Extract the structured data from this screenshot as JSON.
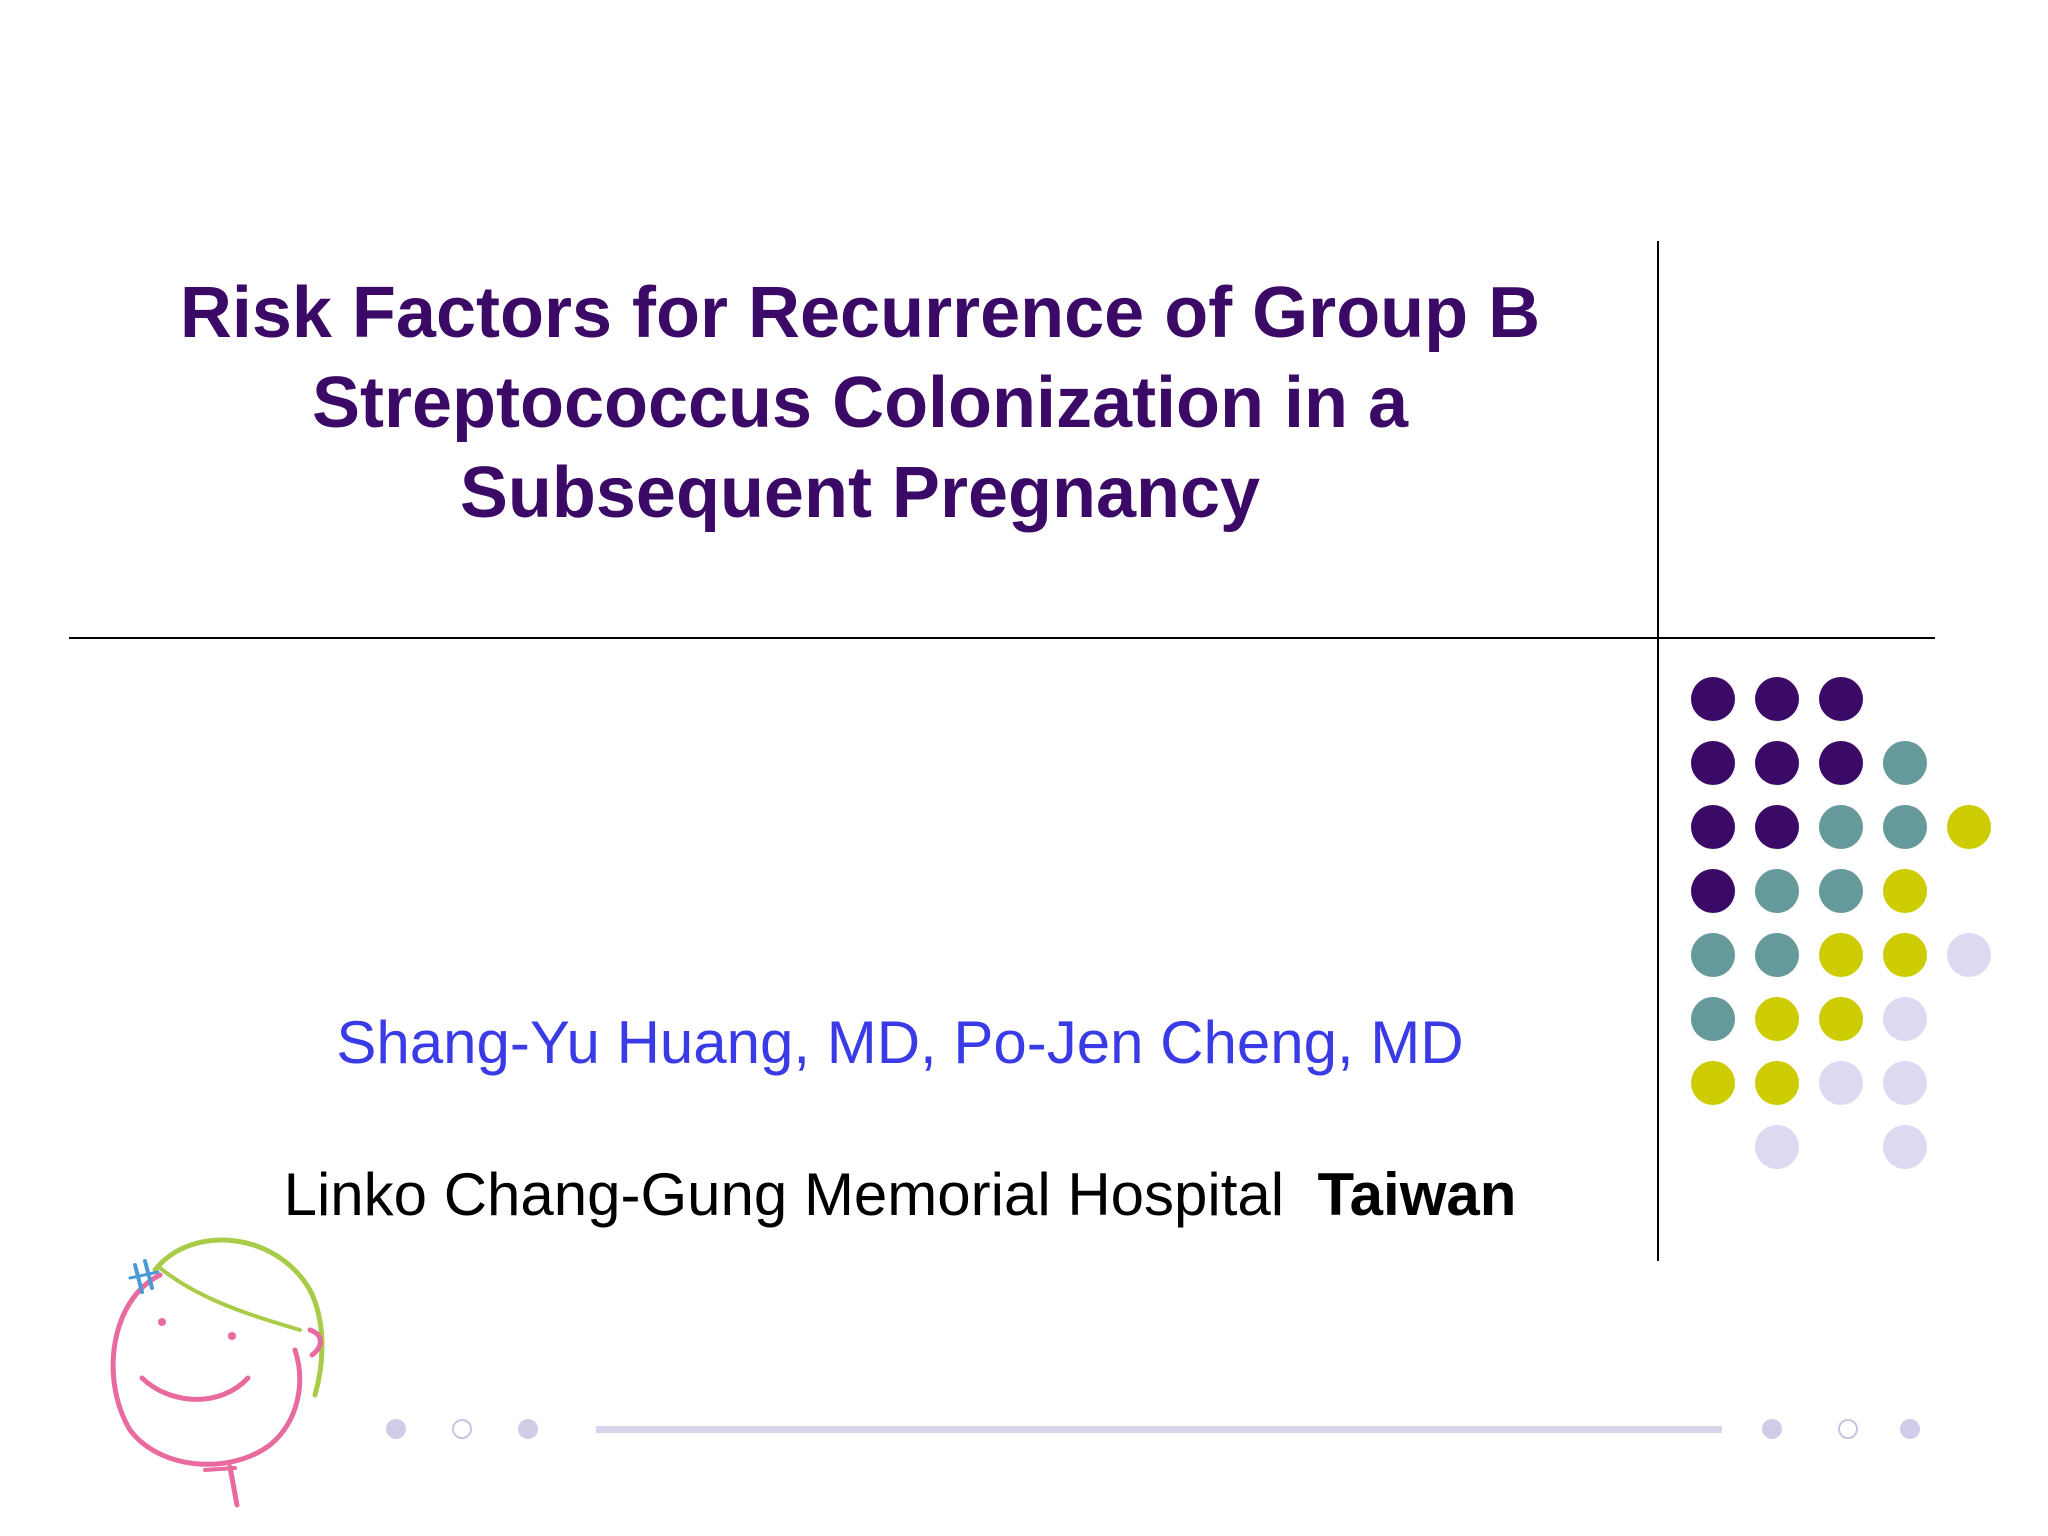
{
  "slide": {
    "title_lines": [
      "Risk Factors for Recurrence of Group B",
      "Streptococcus Colonization in a",
      "Subsequent Pregnancy"
    ],
    "authors": "Shang-Yu Huang, MD, Po-Jen Cheng, MD",
    "affiliation": {
      "institution": "Linko Chang-Gung Memorial Hospital",
      "country": "Taiwan"
    },
    "logo_icon": "smiling-face-logo-icon",
    "colors": {
      "title": "#3a0a66",
      "authors": "#3a3ae6",
      "dot_purple": "#3a0a66",
      "dot_teal": "#669999",
      "dot_lime": "#cccc00",
      "dot_lavender": "#dcdaf0"
    }
  }
}
